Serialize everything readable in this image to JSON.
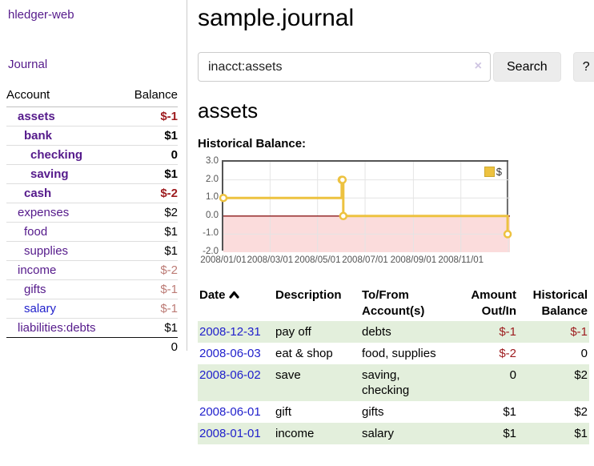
{
  "app": {
    "title": "hledger-web"
  },
  "sidebar": {
    "nav_journal": "Journal",
    "accounts_table": {
      "headers": [
        "Account",
        "Balance"
      ],
      "rows": [
        {
          "name": "assets",
          "balance": "$-1"
        },
        {
          "name": "bank",
          "balance": "$1"
        },
        {
          "name": "checking",
          "balance": "0"
        },
        {
          "name": "saving",
          "balance": "$1"
        },
        {
          "name": "cash",
          "balance": "$-2"
        },
        {
          "name": "expenses",
          "balance": "$2"
        },
        {
          "name": "food",
          "balance": "$1"
        },
        {
          "name": "supplies",
          "balance": "$1"
        },
        {
          "name": "income",
          "balance": "$-2"
        },
        {
          "name": "gifts",
          "balance": "$-1"
        },
        {
          "name": "salary",
          "balance": "$-1"
        },
        {
          "name": "liabilities:debts",
          "balance": "$1"
        }
      ],
      "total": "0"
    }
  },
  "main": {
    "title": "sample.journal",
    "search": {
      "value": "inacct:assets",
      "clear_icon": "×",
      "button_label": "Search",
      "help_label": "?"
    },
    "section_title": "assets",
    "chart_label": "Historical Balance:",
    "register_table": {
      "headers": [
        "Date",
        "Description",
        "To/From Account(s)",
        "Amount Out/In",
        "Historical Balance"
      ],
      "rows": [
        {
          "date": "2008-12-31",
          "description": "pay off",
          "accounts": "debts",
          "amount": "$-1",
          "balance": "$-1"
        },
        {
          "date": "2008-06-03",
          "description": "eat & shop",
          "accounts": "food, supplies",
          "amount": "$-2",
          "balance": "0"
        },
        {
          "date": "2008-06-02",
          "description": "save",
          "accounts": "saving, checking",
          "amount": "0",
          "balance": "$2"
        },
        {
          "date": "2008-06-01",
          "description": "gift",
          "accounts": "gifts",
          "amount": "$1",
          "balance": "$2"
        },
        {
          "date": "2008-01-01",
          "description": "income",
          "accounts": "salary",
          "amount": "$1",
          "balance": "$1"
        }
      ]
    }
  },
  "chart_data": {
    "type": "line",
    "step": true,
    "title": "Historical Balance:",
    "series": [
      {
        "name": "$",
        "color": "#edc240",
        "points": [
          [
            "2008-01-01",
            1
          ],
          [
            "2008-06-01",
            2
          ],
          [
            "2008-06-02",
            2
          ],
          [
            "2008-06-03",
            0
          ],
          [
            "2008-12-31",
            -1
          ]
        ]
      }
    ],
    "ylim": [
      -2,
      3
    ],
    "yticks": [
      "3.0",
      "2.0",
      "1.0",
      "0.0",
      "-1.0",
      "-2.0"
    ],
    "xticks": [
      "2008/01/01",
      "2008/03/01",
      "2008/05/01",
      "2008/07/01",
      "2008/09/01",
      "2008/11/01"
    ],
    "x_span_days": 368,
    "grid": true,
    "legend_position": "top-right",
    "negative_region_color": "#fbdcdc",
    "zero_line_color": "#8b1a1a",
    "gridline_color": "#e4e4e4"
  },
  "colors": {
    "link_purple": "#551a8b",
    "link_blue": "#2121cc",
    "negative_strong": "#9d1b1e",
    "negative_soft": "#bc7b75",
    "row_green": "#e3efdc",
    "series_gold": "#edc240"
  }
}
